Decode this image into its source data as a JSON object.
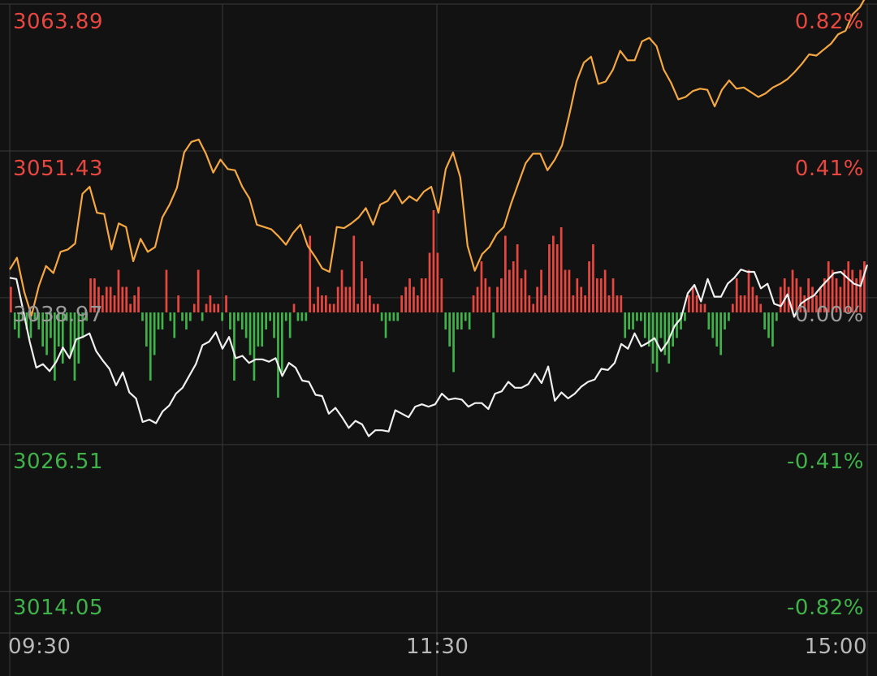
{
  "colors": {
    "background": "#121212",
    "grid": "#3a3a3a",
    "up": "#e8473f",
    "down": "#3fb24a",
    "flat": "#9a9a9a",
    "price_line": "#f0f0f0",
    "avg_line": "#f5a742"
  },
  "chart_data": {
    "type": "line",
    "y_ticks": [
      "3063.89",
      "3051.43",
      "3038.97",
      "3026.51",
      "3014.05"
    ],
    "pct_ticks": [
      "0.82%",
      "0.41%",
      "0.00%",
      "-0.41%",
      "-0.82%"
    ],
    "x_ticks": [
      "09:30",
      "11:30",
      "15:00"
    ],
    "ylim": [
      3014.05,
      3063.89
    ],
    "base": 3038.97,
    "series": [
      {
        "role": "price",
        "color": "#f0f0f0",
        "values": [
          3041.9,
          3041.8,
          3039.2,
          3036.5,
          3034.3,
          3034.6,
          3034.0,
          3034.8,
          3036.0,
          3035.1,
          3036.7,
          3036.9,
          3037.2,
          3035.7,
          3034.9,
          3034.2,
          3032.8,
          3033.9,
          3032.2,
          3031.7,
          3029.7,
          3029.9,
          3029.6,
          3030.6,
          3031.1,
          3032.1,
          3032.6,
          3033.6,
          3034.6,
          3036.2,
          3036.5,
          3037.3,
          3035.9,
          3036.9,
          3035.1,
          3035.3,
          3034.7,
          3035.0,
          3035.0,
          3034.8,
          3035.1,
          3033.6,
          3034.7,
          3034.3,
          3033.2,
          3033.1,
          3032.0,
          3031.9,
          3030.4,
          3030.9,
          3030.1,
          3029.2,
          3029.8,
          3029.5,
          3028.5,
          3029.0,
          3029.0,
          3028.9,
          3030.7,
          3030.4,
          3030.1,
          3031.0,
          3031.2,
          3031.0,
          3031.2,
          3032.1,
          3031.6,
          3031.7,
          3031.6,
          3031.0,
          3031.3,
          3031.3,
          3030.8,
          3032.1,
          3032.3,
          3033.1,
          3032.6,
          3032.6,
          3032.9,
          3033.8,
          3033.0,
          3034.4,
          3031.5,
          3032.2,
          3031.7,
          3032.1,
          3032.7,
          3033.1,
          3033.3,
          3034.2,
          3034.1,
          3034.7,
          3036.3,
          3035.9,
          3037.2,
          3036.1,
          3036.4,
          3036.8,
          3035.7,
          3036.5,
          3037.8,
          3038.5,
          3040.6,
          3041.3,
          3039.9,
          3041.8,
          3040.3,
          3040.3,
          3041.4,
          3041.9,
          3042.6,
          3042.4,
          3042.4,
          3041.0,
          3041.4,
          3039.7,
          3039.5,
          3040.5,
          3038.6,
          3039.7,
          3040.1,
          3040.4,
          3041.1,
          3041.7,
          3042.3,
          3042.4,
          3041.9,
          3041.4,
          3041.2,
          3043.0
        ]
      },
      {
        "role": "average",
        "color": "#f5a742",
        "values": [
          3042.6,
          3043.6,
          3040.7,
          3038.7,
          3041.2,
          3042.9,
          3042.3,
          3044.1,
          3044.3,
          3044.8,
          3049.0,
          3049.6,
          3047.4,
          3047.3,
          3044.3,
          3046.5,
          3046.2,
          3043.3,
          3045.2,
          3044.1,
          3044.5,
          3047.0,
          3048.1,
          3049.5,
          3052.5,
          3053.4,
          3053.6,
          3052.4,
          3050.8,
          3051.9,
          3051.1,
          3051.0,
          3049.6,
          3048.6,
          3046.4,
          3046.2,
          3046.0,
          3045.4,
          3044.7,
          3045.7,
          3046.4,
          3044.6,
          3043.7,
          3042.7,
          3042.4,
          3046.2,
          3046.1,
          3046.5,
          3047.0,
          3047.8,
          3046.4,
          3048.1,
          3048.4,
          3049.3,
          3048.2,
          3048.8,
          3048.4,
          3049.2,
          3049.6,
          3047.4,
          3051.1,
          3052.5,
          3050.4,
          3044.6,
          3042.5,
          3043.9,
          3044.5,
          3045.6,
          3046.2,
          3048.2,
          3049.9,
          3051.6,
          3052.4,
          3052.4,
          3051.0,
          3051.9,
          3053.1,
          3055.7,
          3058.5,
          3060.1,
          3060.6,
          3058.3,
          3058.5,
          3059.5,
          3061.1,
          3060.3,
          3060.3,
          3061.9,
          3062.2,
          3061.5,
          3059.5,
          3058.4,
          3057.0,
          3057.2,
          3057.7,
          3057.9,
          3057.8,
          3056.4,
          3057.8,
          3058.6,
          3057.9,
          3058.0,
          3057.6,
          3057.2,
          3057.5,
          3058.0,
          3058.3,
          3058.7,
          3059.3,
          3060.0,
          3060.8,
          3060.7,
          3061.2,
          3061.7,
          3062.5,
          3062.8,
          3064.2,
          3064.8,
          3065.9
        ]
      }
    ],
    "volume": {
      "bar_color_positive": "#e8473f",
      "bar_color_negative": "#3fb24a",
      "values": [
        3,
        -2,
        -3,
        -1,
        -2,
        -3,
        -1,
        -2,
        -4,
        -5,
        -3,
        -8,
        -4,
        -6,
        -1,
        -5,
        -8,
        -6,
        -3,
        -1,
        4,
        4,
        3,
        2,
        3,
        3,
        2,
        5,
        3,
        3,
        1,
        2,
        3,
        -1,
        -4,
        -8,
        -5,
        -2,
        -2,
        5,
        -1,
        -3,
        2,
        -1,
        -2,
        -1,
        1,
        5,
        -1,
        1,
        2,
        1,
        1,
        -1,
        2,
        -2,
        -8,
        -1,
        -2,
        -3,
        -5,
        -8,
        -4,
        -4,
        -2,
        -1,
        -3,
        -10,
        -7,
        -1,
        -3,
        1,
        -1,
        -1,
        -1,
        9,
        1,
        3,
        2,
        2,
        1,
        1,
        3,
        5,
        3,
        3,
        9,
        1,
        6,
        4,
        2,
        1,
        1,
        -1,
        -3,
        -1,
        -1,
        -1,
        2,
        3,
        4,
        3,
        2,
        4,
        4,
        7,
        12,
        7,
        4,
        -2,
        -4,
        -7,
        -2,
        -2,
        -1,
        -2,
        2,
        3,
        6,
        4,
        3,
        -3,
        3,
        4,
        9,
        5,
        6,
        8,
        4,
        5,
        2,
        1,
        3,
        5,
        2,
        8,
        9,
        8,
        10,
        5,
        5,
        2,
        4,
        3,
        2,
        6,
        8,
        4,
        4,
        5,
        2,
        4,
        2,
        2,
        -3,
        -2,
        -2,
        -1,
        -1,
        -3,
        -4,
        -6,
        -7,
        -3,
        -5,
        -6,
        -4,
        -3,
        -2,
        -1,
        2,
        3,
        2,
        1,
        1,
        -2,
        -3,
        -4,
        -5,
        -2,
        -1,
        1,
        4,
        2,
        2,
        5,
        3,
        2,
        1,
        -2,
        -3,
        -4,
        -1,
        3,
        4,
        3,
        5,
        4,
        3,
        2,
        4,
        3,
        2,
        3,
        4,
        6,
        5,
        4,
        3,
        5,
        6,
        5,
        4,
        5,
        6
      ]
    },
    "grid": true
  }
}
